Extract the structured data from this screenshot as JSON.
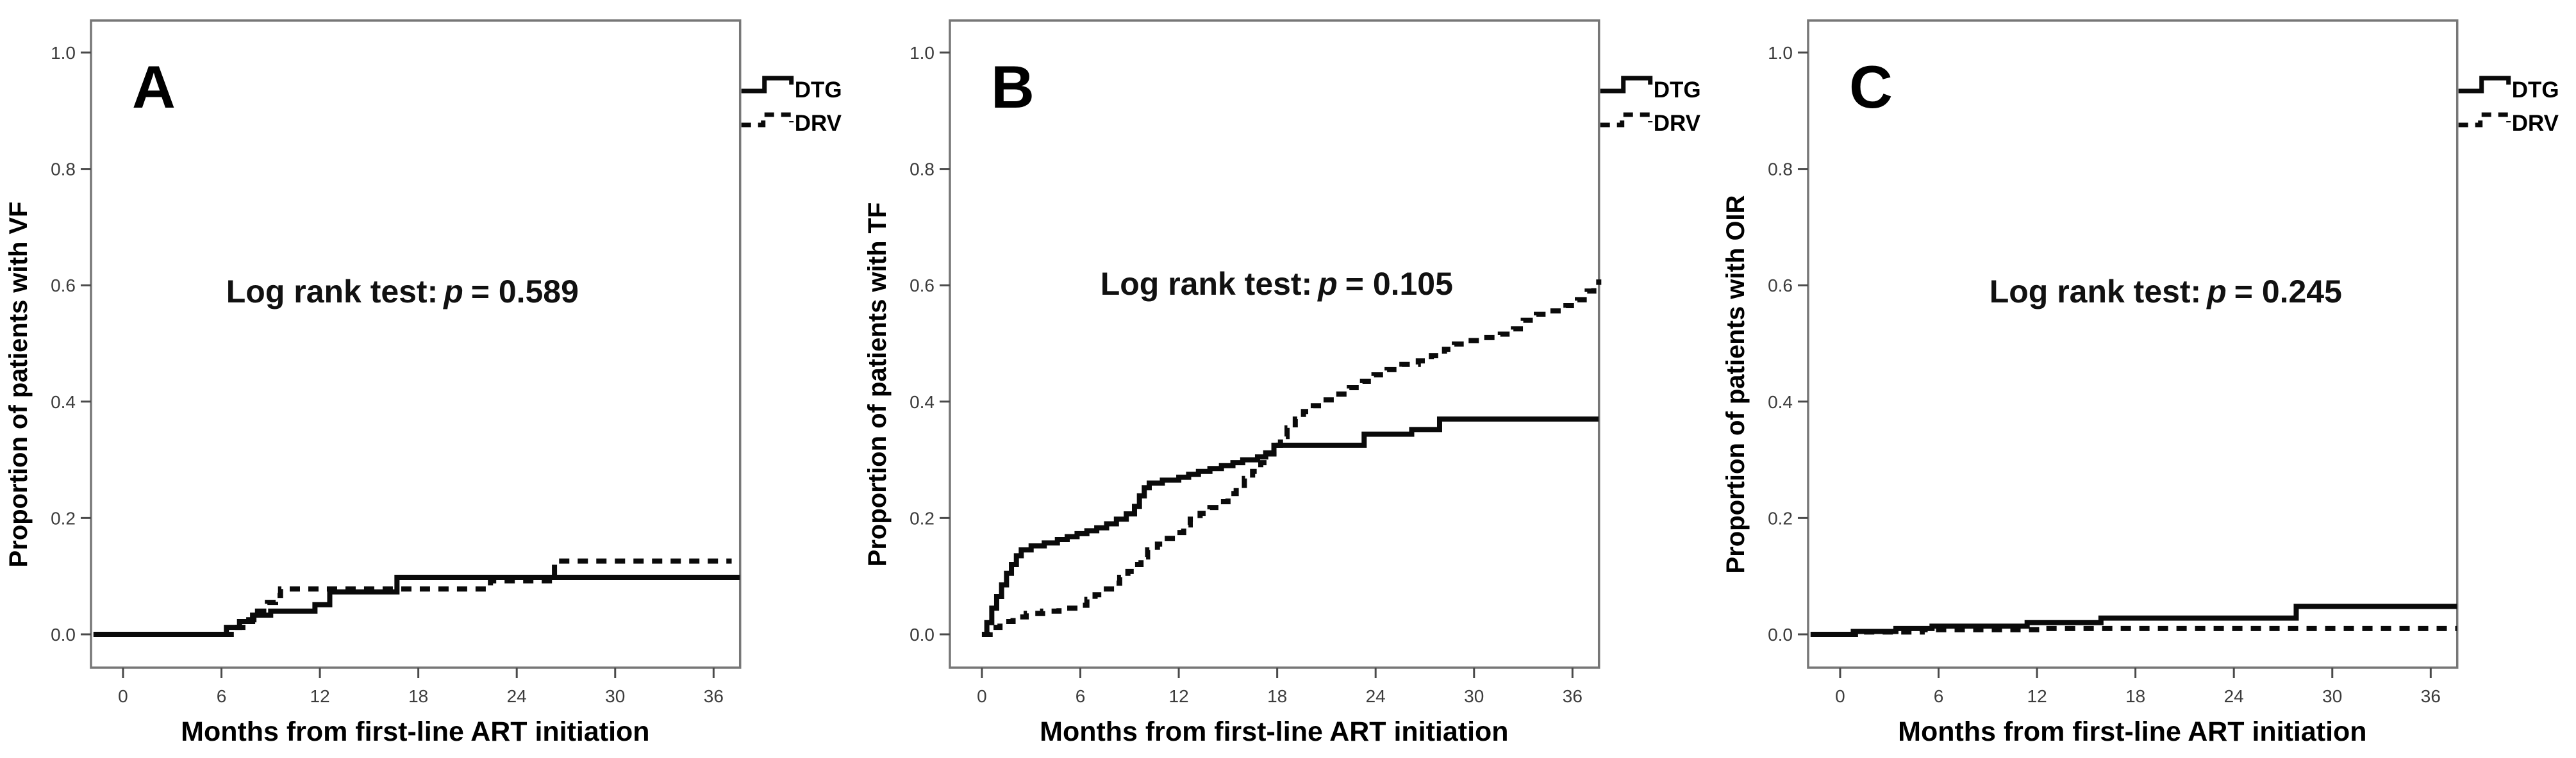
{
  "figure": {
    "background": "#ffffff",
    "frame_color": "#777777",
    "curve_color": "#0a0a0a",
    "tick_color": "#4a4a4a"
  },
  "chart_data": [
    {
      "type": "line",
      "variant": "kaplan-meier-step",
      "panel_label": "A",
      "ylabel": "Proportion of patients with VF",
      "xlabel": "Months from first-line ART initiation",
      "stat": {
        "prefix": "Log rank test:",
        "p": "p",
        "suffix": "= 0.589"
      },
      "p_value": 0.589,
      "x_ticks": [
        0,
        6,
        12,
        18,
        24,
        30,
        36
      ],
      "y_ticks": [
        1.0,
        0.8,
        0.6,
        0.4,
        0.2,
        0.0
      ],
      "xlim": [
        -2,
        38
      ],
      "ylim": [
        -0.05,
        1.05
      ],
      "grid": false,
      "legend_position": "top-right-outside",
      "legend": [
        {
          "label": "DTG",
          "line": "solid"
        },
        {
          "label": "DRV",
          "line": "dashed"
        }
      ],
      "series": [
        {
          "name": "DTG",
          "line": "solid",
          "points": [
            [
              -1.8,
              0
            ],
            [
              6.3,
              0.012
            ],
            [
              7.1,
              0.022
            ],
            [
              7.9,
              0.033
            ],
            [
              9.0,
              0.04
            ],
            [
              11.7,
              0.051
            ],
            [
              12.6,
              0.073
            ],
            [
              16.7,
              0.098
            ],
            [
              37.6,
              0.098
            ]
          ]
        },
        {
          "name": "DRV",
          "line": "dashed",
          "points": [
            [
              -1.8,
              0
            ],
            [
              6.8,
              0.012
            ],
            [
              7.5,
              0.025
            ],
            [
              8.2,
              0.04
            ],
            [
              8.8,
              0.055
            ],
            [
              9.3,
              0.067
            ],
            [
              9.6,
              0.078
            ],
            [
              22.4,
              0.092
            ],
            [
              26.3,
              0.126
            ],
            [
              37.1,
              0.126
            ]
          ]
        }
      ]
    },
    {
      "type": "line",
      "variant": "kaplan-meier-step",
      "panel_label": "B",
      "ylabel": "Proportion of patients with TF",
      "xlabel": "Months from first-line ART initiation",
      "stat": {
        "prefix": "Log rank test:",
        "p": "p",
        "suffix": "= 0.105"
      },
      "p_value": 0.105,
      "x_ticks": [
        0,
        6,
        12,
        18,
        24,
        30,
        36
      ],
      "y_ticks": [
        1.0,
        0.8,
        0.6,
        0.4,
        0.2,
        0.0
      ],
      "xlim": [
        -2,
        38
      ],
      "ylim": [
        -0.05,
        1.05
      ],
      "grid": false,
      "legend_position": "top-right-outside",
      "legend": [
        {
          "label": "DTG",
          "line": "solid"
        },
        {
          "label": "DRV",
          "line": "dashed"
        }
      ],
      "series": [
        {
          "name": "DTG",
          "line": "solid",
          "points": [
            [
              0,
              0
            ],
            [
              0.3,
              0.02
            ],
            [
              0.6,
              0.045
            ],
            [
              0.9,
              0.065
            ],
            [
              1.2,
              0.085
            ],
            [
              1.5,
              0.105
            ],
            [
              1.8,
              0.12
            ],
            [
              2.1,
              0.135
            ],
            [
              2.4,
              0.145
            ],
            [
              3.0,
              0.152
            ],
            [
              3.8,
              0.157
            ],
            [
              4.6,
              0.163
            ],
            [
              5.2,
              0.168
            ],
            [
              5.8,
              0.173
            ],
            [
              6.4,
              0.178
            ],
            [
              7.0,
              0.183
            ],
            [
              7.6,
              0.19
            ],
            [
              8.2,
              0.198
            ],
            [
              8.8,
              0.207
            ],
            [
              9.3,
              0.22
            ],
            [
              9.6,
              0.238
            ],
            [
              9.9,
              0.252
            ],
            [
              10.2,
              0.26
            ],
            [
              11.0,
              0.265
            ],
            [
              12.0,
              0.27
            ],
            [
              12.6,
              0.275
            ],
            [
              13.2,
              0.28
            ],
            [
              13.9,
              0.285
            ],
            [
              14.6,
              0.29
            ],
            [
              15.3,
              0.295
            ],
            [
              15.9,
              0.3
            ],
            [
              16.8,
              0.305
            ],
            [
              17.3,
              0.312
            ],
            [
              17.8,
              0.325
            ],
            [
              23.3,
              0.344
            ],
            [
              26.2,
              0.352
            ],
            [
              27.9,
              0.37
            ],
            [
              37.6,
              0.37
            ]
          ]
        },
        {
          "name": "DRV",
          "line": "dashed",
          "points": [
            [
              0,
              0
            ],
            [
              0.5,
              0.012
            ],
            [
              1.1,
              0.022
            ],
            [
              1.9,
              0.03
            ],
            [
              2.7,
              0.036
            ],
            [
              3.7,
              0.04
            ],
            [
              4.7,
              0.045
            ],
            [
              5.9,
              0.05
            ],
            [
              6.4,
              0.06
            ],
            [
              6.9,
              0.068
            ],
            [
              7.4,
              0.078
            ],
            [
              7.9,
              0.088
            ],
            [
              8.4,
              0.098
            ],
            [
              8.9,
              0.108
            ],
            [
              9.3,
              0.12
            ],
            [
              9.7,
              0.133
            ],
            [
              10.1,
              0.145
            ],
            [
              10.7,
              0.155
            ],
            [
              11.3,
              0.165
            ],
            [
              11.9,
              0.175
            ],
            [
              12.3,
              0.188
            ],
            [
              12.7,
              0.198
            ],
            [
              13.3,
              0.208
            ],
            [
              13.9,
              0.218
            ],
            [
              14.5,
              0.228
            ],
            [
              15.0,
              0.242
            ],
            [
              15.5,
              0.256
            ],
            [
              16.0,
              0.268
            ],
            [
              16.5,
              0.28
            ],
            [
              17.0,
              0.295
            ],
            [
              17.4,
              0.31
            ],
            [
              17.8,
              0.325
            ],
            [
              18.2,
              0.34
            ],
            [
              18.6,
              0.355
            ],
            [
              19.1,
              0.37
            ],
            [
              19.6,
              0.383
            ],
            [
              20.2,
              0.393
            ],
            [
              20.8,
              0.403
            ],
            [
              21.6,
              0.413
            ],
            [
              22.4,
              0.424
            ],
            [
              23.2,
              0.435
            ],
            [
              23.9,
              0.446
            ],
            [
              24.7,
              0.455
            ],
            [
              25.6,
              0.464
            ],
            [
              26.6,
              0.47
            ],
            [
              27.4,
              0.479
            ],
            [
              28.2,
              0.49
            ],
            [
              28.8,
              0.499
            ],
            [
              29.6,
              0.505
            ],
            [
              30.6,
              0.51
            ],
            [
              31.6,
              0.516
            ],
            [
              32.4,
              0.525
            ],
            [
              33.0,
              0.54
            ],
            [
              33.8,
              0.55
            ],
            [
              34.6,
              0.556
            ],
            [
              35.6,
              0.565
            ],
            [
              36.3,
              0.575
            ],
            [
              36.9,
              0.59
            ],
            [
              37.3,
              0.6
            ],
            [
              37.6,
              0.61
            ]
          ]
        }
      ]
    },
    {
      "type": "line",
      "variant": "kaplan-meier-step",
      "panel_label": "C",
      "ylabel": "Proportion of patients with OIR",
      "xlabel": "Months from first-line ART initiation",
      "stat": {
        "prefix": "Log rank test:",
        "p": "p",
        "suffix": "= 0.245"
      },
      "p_value": 0.245,
      "x_ticks": [
        0,
        6,
        12,
        18,
        24,
        30,
        36
      ],
      "y_ticks": [
        1.0,
        0.8,
        0.6,
        0.4,
        0.2,
        0.0
      ],
      "xlim": [
        -2,
        38
      ],
      "ylim": [
        -0.05,
        1.05
      ],
      "grid": false,
      "legend_position": "top-right-outside",
      "legend": [
        {
          "label": "DTG",
          "line": "solid"
        },
        {
          "label": "DRV",
          "line": "dashed"
        }
      ],
      "series": [
        {
          "name": "DTG",
          "line": "solid",
          "points": [
            [
              -1.8,
              0
            ],
            [
              0.8,
              0.005
            ],
            [
              3.4,
              0.01
            ],
            [
              5.6,
              0.014
            ],
            [
              11.4,
              0.02
            ],
            [
              15.9,
              0.028
            ],
            [
              27.8,
              0.048
            ],
            [
              37.6,
              0.048
            ]
          ]
        },
        {
          "name": "DRV",
          "line": "dashed",
          "points": [
            [
              -1.8,
              0
            ],
            [
              1.2,
              0.004
            ],
            [
              5.0,
              0.008
            ],
            [
              12.5,
              0.01
            ],
            [
              37.6,
              0.01
            ]
          ]
        }
      ]
    }
  ]
}
